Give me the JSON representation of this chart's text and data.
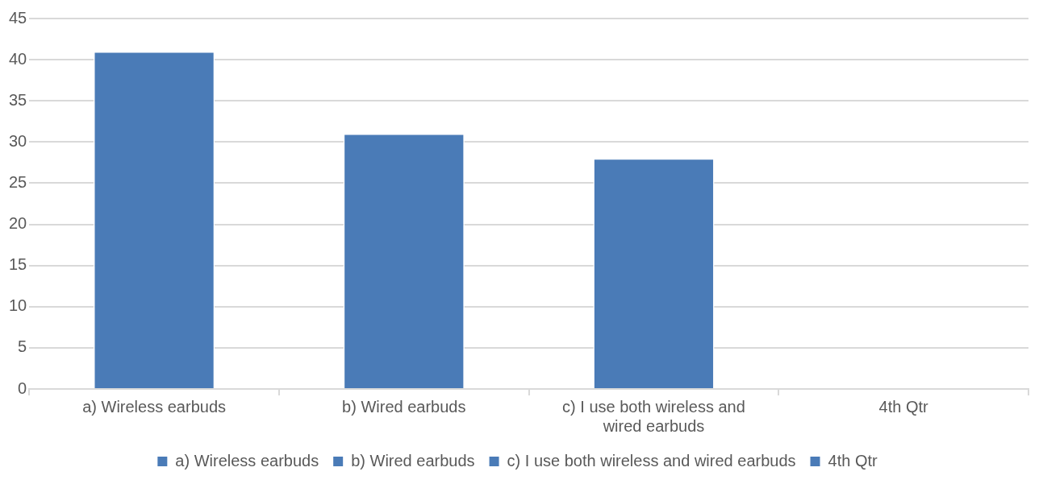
{
  "chart_data": {
    "type": "bar",
    "categories": [
      "a) Wireless earbuds",
      "b) Wired earbuds",
      "c) I use both wireless and wired earbuds",
      "4th Qtr"
    ],
    "series": [
      {
        "name": "a) Wireless earbuds",
        "color": "#4a7bb7",
        "values": [
          41,
          null,
          null,
          null
        ]
      },
      {
        "name": "b) Wired earbuds",
        "color": "#4a7bb7",
        "values": [
          null,
          31,
          null,
          null
        ]
      },
      {
        "name": "c) I use both wireless and wired earbuds",
        "color": "#4a7bb7",
        "values": [
          null,
          null,
          28,
          null
        ]
      },
      {
        "name": "4th Qtr",
        "color": "#4a7bb7",
        "values": [
          null,
          null,
          null,
          null
        ]
      }
    ],
    "ylim": [
      0,
      45
    ],
    "yticks": [
      0,
      5,
      10,
      15,
      20,
      25,
      30,
      35,
      40,
      45
    ],
    "grid": "y",
    "legend": "bottom"
  }
}
